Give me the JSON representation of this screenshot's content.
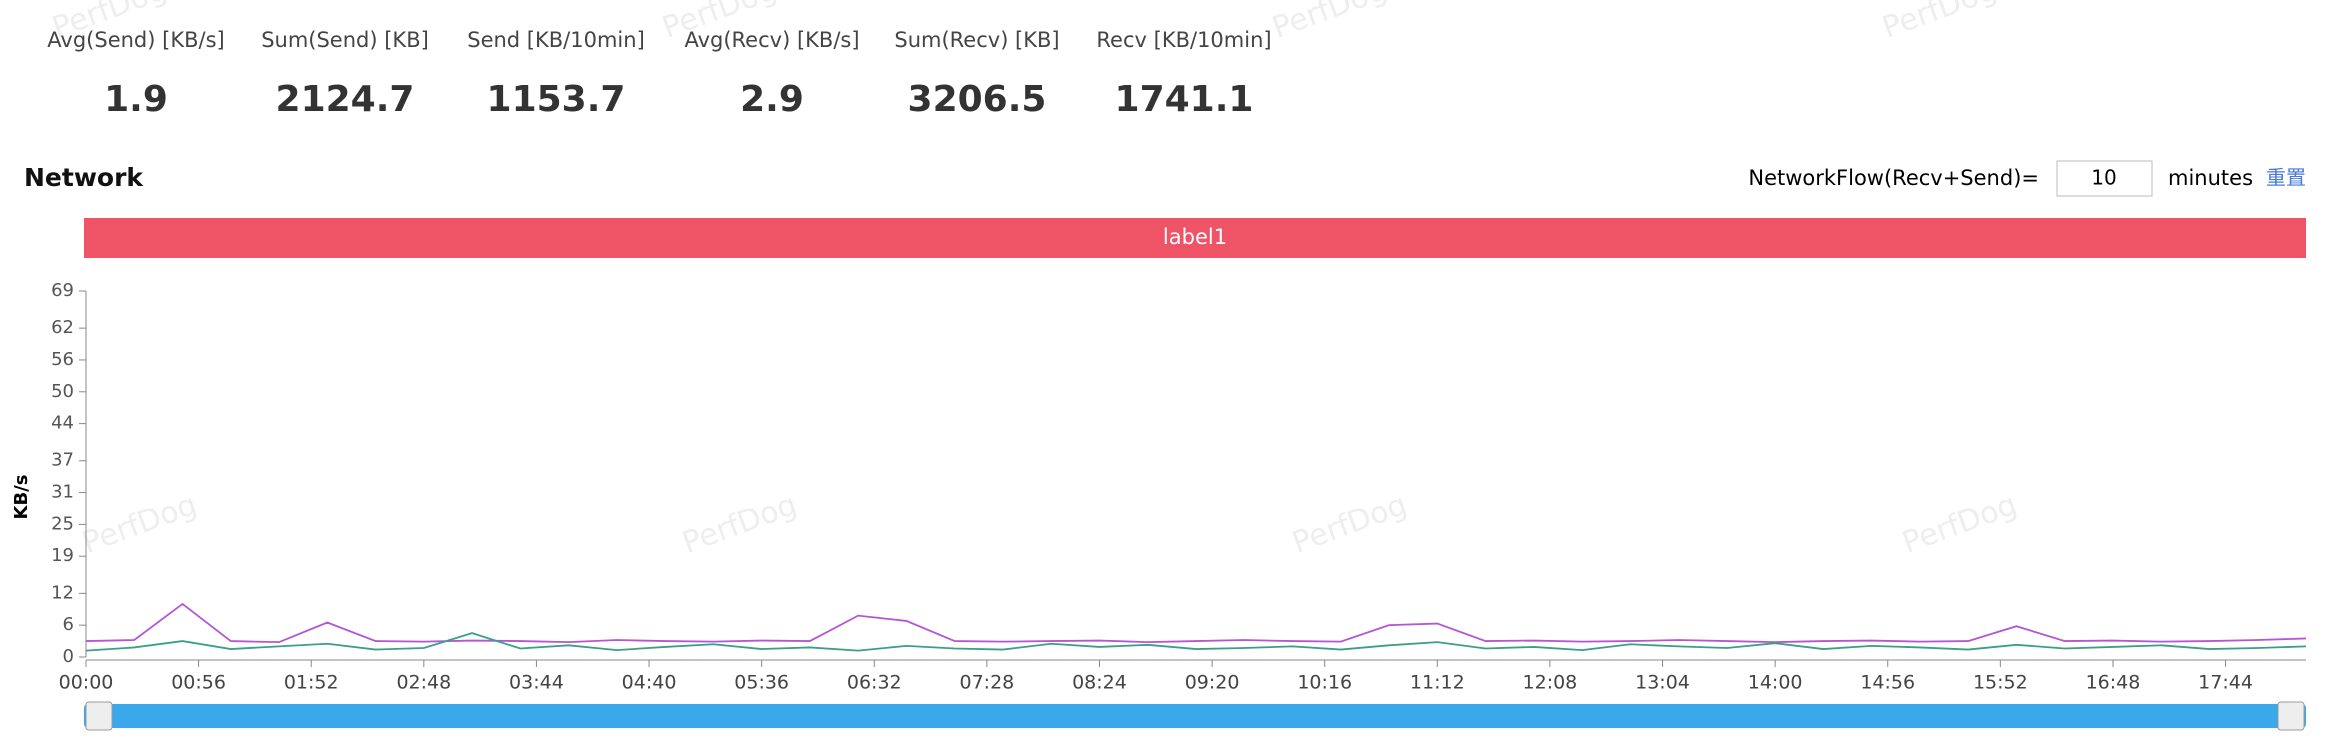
{
  "stats": [
    {
      "label": "Avg(Send) [KB/s]",
      "value": 1.9
    },
    {
      "label": "Sum(Send) [KB]",
      "value": 2124.7
    },
    {
      "label": "Send [KB/10min]",
      "value": 1153.7
    },
    {
      "label": "Avg(Recv) [KB/s]",
      "value": 2.9
    },
    {
      "label": "Sum(Recv) [KB]",
      "value": 3206.5
    },
    {
      "label": "Recv [KB/10min]",
      "value": 1741.1
    }
  ],
  "section_title": "Network",
  "flow_label": "NetworkFlow(Recv+Send)=",
  "flow_input": 10,
  "flow_unit": "minutes",
  "reset": "重置",
  "watermark": "PerfDog",
  "chart_data": {
    "type": "line",
    "band_label": "label1",
    "y_label": "KB/s",
    "ylim": [
      0,
      69
    ],
    "yticks": [
      0,
      6,
      12,
      19,
      25,
      31,
      37,
      44,
      50,
      56,
      62,
      69
    ],
    "xlim": [
      0,
      1104
    ],
    "xticks": [
      {
        "value": 0,
        "label": "00:00"
      },
      {
        "value": 56,
        "label": "00:56"
      },
      {
        "value": 112,
        "label": "01:52"
      },
      {
        "value": 168,
        "label": "02:48"
      },
      {
        "value": 224,
        "label": "03:44"
      },
      {
        "value": 280,
        "label": "04:40"
      },
      {
        "value": 336,
        "label": "05:36"
      },
      {
        "value": 392,
        "label": "06:32"
      },
      {
        "value": 448,
        "label": "07:28"
      },
      {
        "value": 504,
        "label": "08:24"
      },
      {
        "value": 560,
        "label": "09:20"
      },
      {
        "value": 616,
        "label": "10:16"
      },
      {
        "value": 672,
        "label": "11:12"
      },
      {
        "value": 728,
        "label": "12:08"
      },
      {
        "value": 784,
        "label": "13:04"
      },
      {
        "value": 840,
        "label": "14:00"
      },
      {
        "value": 896,
        "label": "14:56"
      },
      {
        "value": 952,
        "label": "15:52"
      },
      {
        "value": 1008,
        "label": "16:48"
      },
      {
        "value": 1064,
        "label": "17:44"
      }
    ],
    "x": [
      0,
      24,
      48,
      72,
      96,
      120,
      144,
      168,
      192,
      216,
      240,
      264,
      288,
      312,
      336,
      360,
      384,
      408,
      432,
      456,
      480,
      504,
      528,
      552,
      576,
      600,
      624,
      648,
      672,
      696,
      720,
      744,
      768,
      792,
      816,
      840,
      864,
      888,
      912,
      936,
      960,
      984,
      1008,
      1032,
      1056,
      1080,
      1104
    ],
    "series": [
      {
        "color": "#b455d4",
        "values": [
          3,
          3.2,
          10,
          3,
          2.8,
          6.5,
          3,
          2.9,
          3.1,
          3,
          2.8,
          3.2,
          3,
          2.9,
          3.1,
          3,
          7.8,
          6.8,
          3,
          2.9,
          3,
          3.1,
          2.8,
          3,
          3.2,
          3,
          2.9,
          6,
          6.3,
          3,
          3.1,
          2.9,
          3,
          3.2,
          3,
          2.8,
          3,
          3.1,
          2.9,
          3,
          5.8,
          3,
          3.1,
          2.9,
          3,
          3.2,
          3.5
        ]
      },
      {
        "color": "#3a9f86",
        "values": [
          1.2,
          1.8,
          3,
          1.5,
          2,
          2.5,
          1.4,
          1.7,
          4.5,
          1.6,
          2.2,
          1.3,
          1.9,
          2.4,
          1.5,
          1.8,
          1.2,
          2.1,
          1.6,
          1.4,
          2.5,
          1.9,
          2.3,
          1.5,
          1.7,
          2,
          1.4,
          2.2,
          2.8,
          1.6,
          1.9,
          1.3,
          2.4,
          2,
          1.7,
          2.6,
          1.5,
          2.1,
          1.8,
          1.4,
          2.3,
          1.6,
          1.9,
          2.2,
          1.5,
          1.7,
          2
        ]
      }
    ]
  }
}
